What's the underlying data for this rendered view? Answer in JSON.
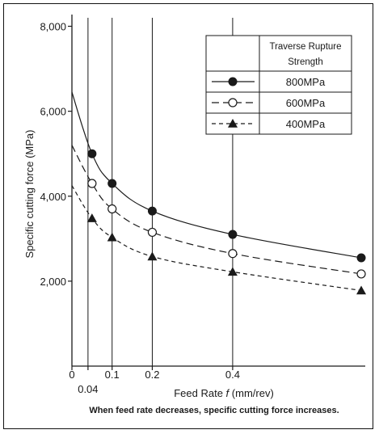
{
  "chart_data": {
    "type": "line",
    "title": "",
    "xlabel_prefix": "Feed Rate ",
    "xlabel_var": "f",
    "xlabel_suffix": " (mm/rev)",
    "ylabel": "Specific cutting force (MPa)",
    "caption": "When feed rate decreases, specific cutting force increases.",
    "xlim": [
      0,
      0.73
    ],
    "ylim": [
      0,
      8200
    ],
    "x_ticks": [
      {
        "value": 0,
        "label": "0",
        "row": 1
      },
      {
        "value": 0.04,
        "label": "0.04",
        "row": 2
      },
      {
        "value": 0.1,
        "label": "0.1",
        "row": 1
      },
      {
        "value": 0.2,
        "label": "0.2",
        "row": 1
      },
      {
        "value": 0.4,
        "label": "0.4",
        "row": 1
      }
    ],
    "y_ticks": [
      {
        "value": 2000,
        "label": "2,000"
      },
      {
        "value": 4000,
        "label": "4,000"
      },
      {
        "value": 6000,
        "label": "6,000"
      },
      {
        "value": 8000,
        "label": "8,000"
      }
    ],
    "vertical_gridlines_at": [
      0.04,
      0.1,
      0.2,
      0.4
    ],
    "legend_title_line1": "Traverse Rupture",
    "legend_title_line2": "Strength",
    "legend_position": "top-right",
    "x": [
      0.05,
      0.1,
      0.2,
      0.4,
      0.72
    ],
    "series": [
      {
        "name": "800MPa",
        "marker": "filled-circle",
        "line": "solid",
        "y_at_0": 6450,
        "values": [
          5000,
          4300,
          3650,
          3100,
          2550
        ]
      },
      {
        "name": "600MPa",
        "marker": "open-circle",
        "line": "dashed",
        "y_at_0": 5200,
        "values": [
          4300,
          3700,
          3150,
          2650,
          2170
        ]
      },
      {
        "name": "400MPa",
        "marker": "filled-triangle",
        "line": "dotted-dash",
        "y_at_0": 4250,
        "values": [
          3480,
          3030,
          2580,
          2220,
          1780
        ]
      }
    ]
  }
}
